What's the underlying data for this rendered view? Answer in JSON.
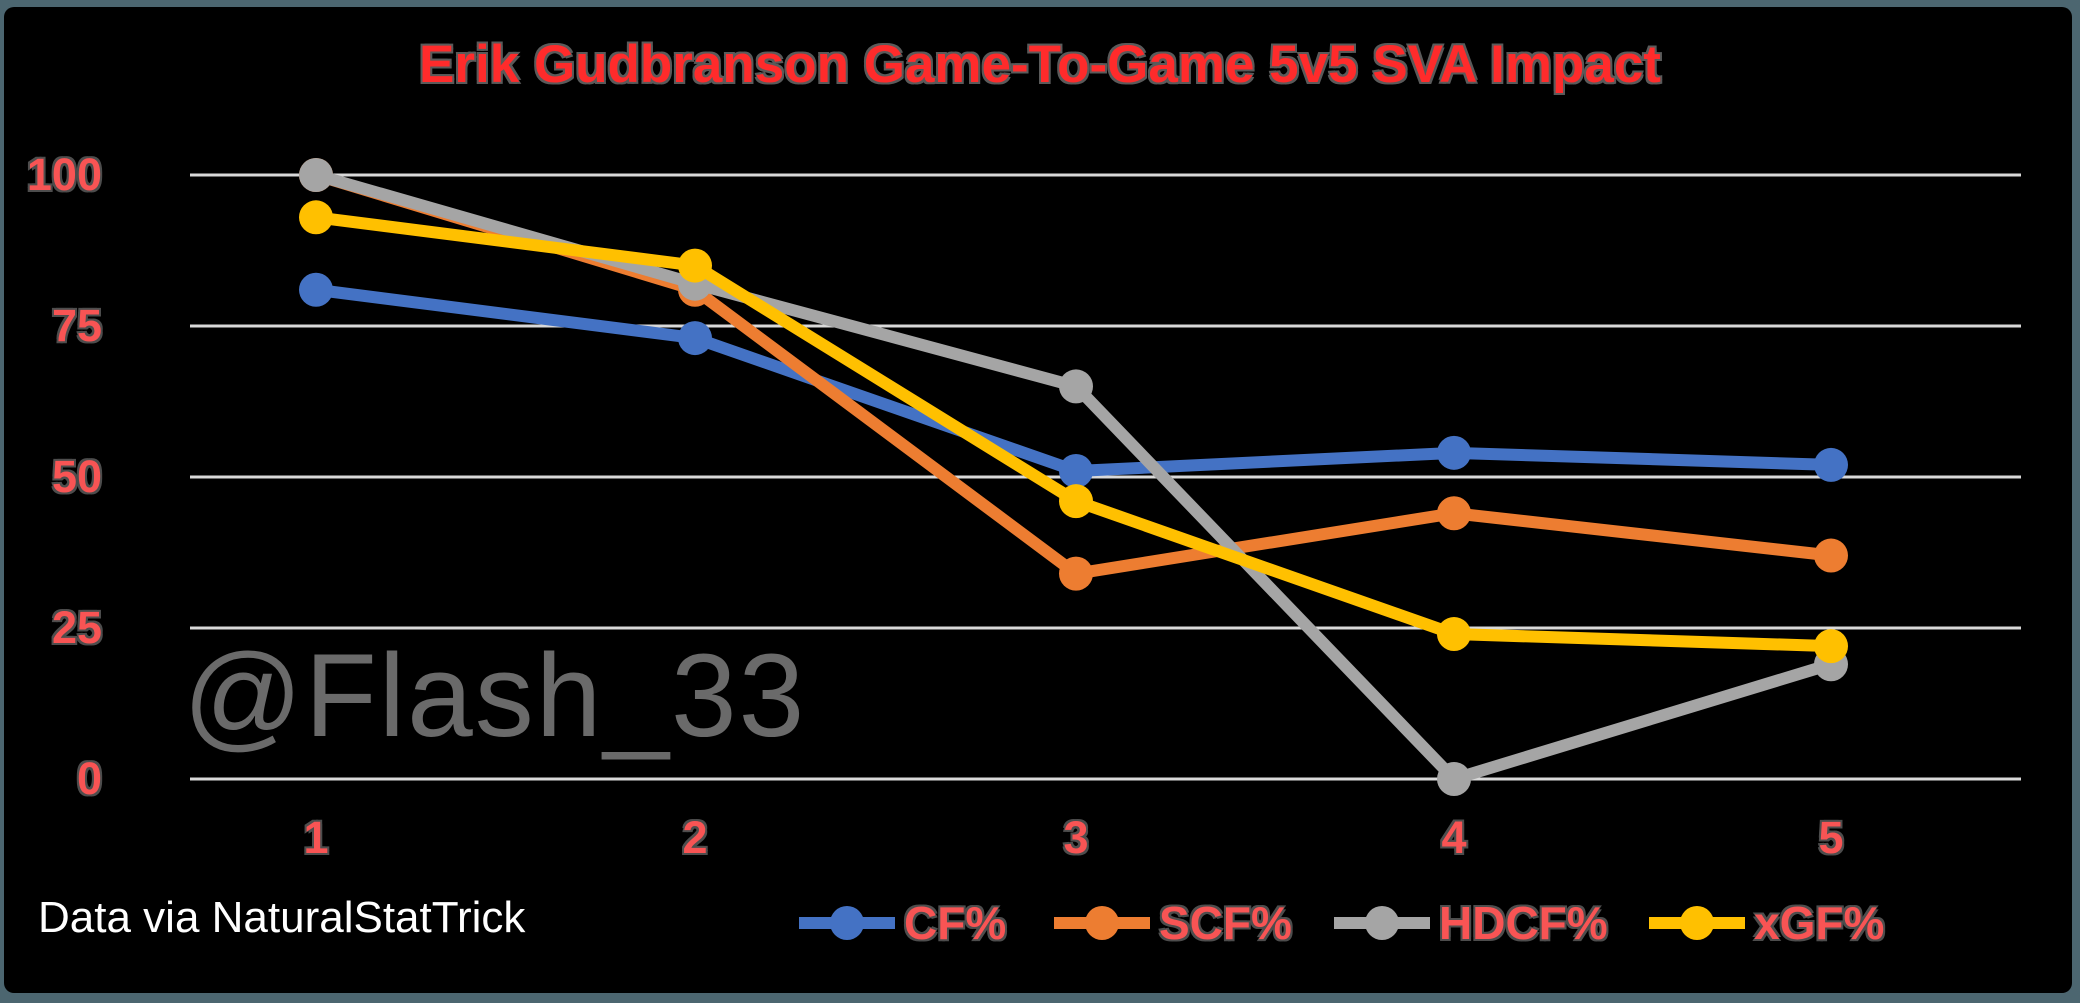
{
  "frame": {
    "border_color": "#4C6670",
    "background_color": "#000000"
  },
  "title": {
    "text": "Erik Gudbranson Game-To-Game 5v5 SVA Impact",
    "color": "#FF2B2B"
  },
  "watermark": {
    "text": "@Flash_33",
    "color": "#6A6A6A"
  },
  "footer": {
    "text": "Data via NaturalStatTrick",
    "color": "#FFFFFF"
  },
  "chart_data": {
    "type": "line",
    "title": "Erik Gudbranson Game-To-Game 5v5 SVA Impact",
    "categories": [
      "1",
      "2",
      "3",
      "4",
      "5"
    ],
    "series": [
      {
        "name": "CF%",
        "color": "#4472C4",
        "values": [
          81,
          73,
          51,
          54,
          52
        ]
      },
      {
        "name": "SCF%",
        "color": "#ED7D31",
        "values": [
          100,
          81,
          34,
          44,
          37
        ]
      },
      {
        "name": "HDCF%",
        "color": "#A5A5A5",
        "values": [
          100,
          82,
          65,
          0,
          19
        ]
      },
      {
        "name": "xGF%",
        "color": "#FFC000",
        "values": [
          93,
          85,
          46,
          24,
          22
        ]
      }
    ],
    "xlabel": "",
    "ylabel": "",
    "ylim": [
      0,
      100
    ],
    "yticks": [
      0,
      25,
      50,
      75,
      100
    ],
    "grid": "horizontal",
    "gridline_color": "#D9D9D9",
    "tick_label_color": "#F85454",
    "legend_position": "bottom"
  }
}
